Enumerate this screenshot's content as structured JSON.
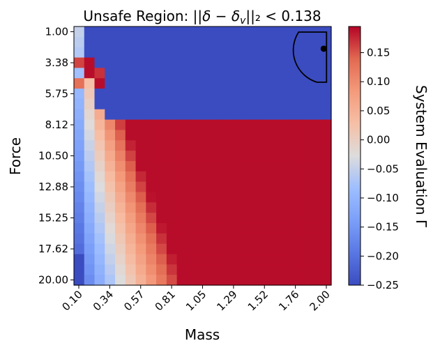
{
  "chart_data": {
    "type": "heatmap",
    "title": "Unsafe Region: ||δ − δ_v||₂ < 0.138",
    "xlabel": "Mass",
    "ylabel": "Force",
    "colorbar_label": "System Evaluation Γ",
    "colormap": "coolwarm",
    "x_ticks": [
      "0.10",
      "0.34",
      "0.57",
      "0.81",
      "1.05",
      "1.29",
      "1.52",
      "1.76",
      "2.00"
    ],
    "y_ticks": [
      "1.00",
      "3.38",
      "5.75",
      "8.12",
      "10.50",
      "12.88",
      "15.25",
      "17.62",
      "20.00"
    ],
    "colorbar_ticks": [
      "0.15",
      "0.10",
      "0.05",
      "0.00",
      "−0.05",
      "−0.10",
      "−0.15",
      "−0.20",
      "−0.25"
    ],
    "x_range": [
      0.1,
      2.0
    ],
    "y_range": [
      1.0,
      20.0
    ],
    "value_range": [
      -0.25,
      0.195
    ],
    "grid": {
      "cols": 25,
      "rows": 25
    },
    "marker": {
      "x": 1.98,
      "y": 2.3
    },
    "unsafe_region": "half-disk boundary around marker, upper-right corner"
  }
}
